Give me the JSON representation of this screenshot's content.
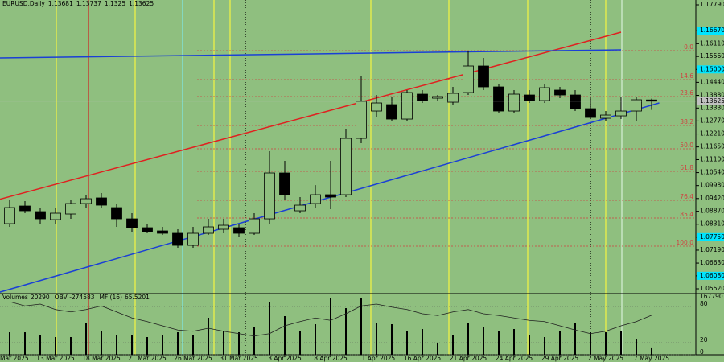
{
  "chart_data": [
    {
      "type": "candlestick",
      "symbol": "EURUSD,Daily",
      "background": "#8fbf7f",
      "categories": [
        "Mar 2025",
        null,
        null,
        "13 Mar 2025",
        null,
        null,
        "18 Mar 2025",
        null,
        null,
        "21 Mar 2025",
        null,
        null,
        "26 Mar 2025",
        null,
        null,
        "31 Mar 2025",
        null,
        null,
        "3 Apr 2025",
        null,
        null,
        "8 Apr 2025",
        null,
        null,
        "11 Apr 2025",
        null,
        null,
        "16 Apr 2025",
        null,
        null,
        "21 Apr 2025",
        null,
        null,
        "24 Apr 2025",
        null,
        null,
        "29 Apr 2025",
        null,
        null,
        "2 May 2025",
        null,
        null,
        "7 May 2025"
      ],
      "open": [
        1.08335,
        1.09099,
        1.08856,
        1.08508,
        1.08752,
        1.09204,
        1.09448,
        1.0903,
        1.08543,
        1.08161,
        1.08022,
        1.07918,
        1.07396,
        1.07918,
        1.08092,
        1.08161,
        1.07918,
        1.08543,
        1.10525,
        1.08891,
        1.09204,
        1.09586,
        1.09586,
        1.12019,
        1.13201,
        1.13479,
        1.12853,
        1.13931,
        1.13757,
        1.13583,
        1.14001,
        1.15148,
        1.14244,
        1.13201,
        1.13896,
        1.13653,
        1.14105,
        1.13896,
        1.13305,
        1.12888,
        1.12992,
        1.13201,
        1.13681
      ],
      "high": [
        1.09378,
        1.09309,
        1.0903,
        1.0903,
        1.09378,
        1.09586,
        1.09656,
        1.09204,
        1.08787,
        1.08335,
        1.08196,
        1.08092,
        1.08196,
        1.08543,
        1.08543,
        1.08335,
        1.08787,
        1.11463,
        1.11046,
        1.09482,
        1.09999,
        1.11046,
        1.12436,
        1.14696,
        1.13896,
        1.13827,
        1.14105,
        1.14105,
        1.13896,
        1.14244,
        1.15808,
        1.15495,
        1.14348,
        1.14105,
        1.14105,
        1.14348,
        1.14244,
        1.14105,
        1.13827,
        1.13201,
        1.13827,
        1.13827,
        1.13737
      ],
      "low": [
        1.08196,
        1.08787,
        1.08335,
        1.08335,
        1.08543,
        1.0903,
        1.0903,
        1.08196,
        1.07987,
        1.07918,
        1.07848,
        1.07292,
        1.07292,
        1.07848,
        1.07918,
        1.07744,
        1.07848,
        1.08335,
        1.09378,
        1.08787,
        1.0903,
        1.0896,
        1.09482,
        1.11811,
        1.12958,
        1.12784,
        1.12784,
        1.13549,
        1.13618,
        1.13479,
        1.13896,
        1.14105,
        1.13131,
        1.13131,
        1.13549,
        1.13549,
        1.13757,
        1.13201,
        1.12853,
        1.12784,
        1.12853,
        1.12784,
        1.1325
      ],
      "close": [
        1.0903,
        1.08891,
        1.08543,
        1.08787,
        1.09204,
        1.09412,
        1.09134,
        1.08543,
        1.08161,
        1.07987,
        1.07918,
        1.07396,
        1.07918,
        1.08196,
        1.08265,
        1.07918,
        1.08543,
        1.10525,
        1.09586,
        1.09134,
        1.09586,
        1.09482,
        1.12019,
        1.13618,
        1.13549,
        1.12853,
        1.14001,
        1.13653,
        1.13827,
        1.13966,
        1.15148,
        1.14244,
        1.13201,
        1.13931,
        1.13653,
        1.14209,
        1.13896,
        1.13305,
        1.12923,
        1.13027,
        1.13201,
        1.13688,
        1.13625
      ],
      "up_color": "#8fbf7f",
      "down_color": "#000000",
      "ylim": [
        1.0552,
        1.1779
      ],
      "yticks": [
        {
          "value": 1.1779,
          "label": "1.17790"
        },
        {
          "value": 1.1667,
          "label": "1.16670",
          "highlight": true
        },
        {
          "value": 1.1611,
          "label": "1.16110"
        },
        {
          "value": 1.1556,
          "label": "1.15560"
        },
        {
          "value": 1.15,
          "label": "1.15000",
          "highlight": true
        },
        {
          "value": 1.1444,
          "label": "1.14440"
        },
        {
          "value": 1.1388,
          "label": "1.13880"
        },
        {
          "value": 1.1333,
          "label": "1.13330"
        },
        {
          "value": 1.1277,
          "label": "1.12770"
        },
        {
          "value": 1.1221,
          "label": "1.12210"
        },
        {
          "value": 1.1165,
          "label": "1.11650"
        },
        {
          "value": 1.111,
          "label": "1.11100"
        },
        {
          "value": 1.1054,
          "label": "1.10540"
        },
        {
          "value": 1.0998,
          "label": "1.09980"
        },
        {
          "value": 1.0942,
          "label": "1.09420"
        },
        {
          "value": 1.0887,
          "label": "1.08870"
        },
        {
          "value": 1.0831,
          "label": "1.08310"
        },
        {
          "value": 1.0775,
          "label": "1.07750",
          "highlight": true
        },
        {
          "value": 1.0719,
          "label": "1.07190"
        },
        {
          "value": 1.0663,
          "label": "1.06630"
        },
        {
          "value": 1.0608,
          "label": "1.06080",
          "highlight": true
        },
        {
          "value": 1.0552,
          "label": "1.05520"
        }
      ],
      "highlight_color": "#00e5ff",
      "current_price_color": "#c0c0c0",
      "fib_color": "#d04040",
      "fib_levels": [
        {
          "label": "0.0",
          "value": 1.15808
        },
        {
          "label": "14.6",
          "value": 1.14557
        },
        {
          "label": "23.6",
          "value": 1.13827
        },
        {
          "label": "38.2",
          "value": 1.12575
        },
        {
          "label": "50.0",
          "value": 1.11568
        },
        {
          "label": "61.8",
          "value": 1.10594
        },
        {
          "label": "76.4",
          "value": 1.09343
        },
        {
          "label": "85.4",
          "value": 1.08578
        },
        {
          "label": "100.0",
          "value": 1.07362
        }
      ],
      "trendlines": [
        {
          "color": "#1a3fd6",
          "x": [
            -1,
            42.5
          ],
          "y": [
            1.0531,
            1.13549
          ]
        },
        {
          "color": "#e02020",
          "x": [
            -0.7,
            40
          ],
          "y": [
            1.09378,
            1.16608
          ]
        },
        {
          "color": "#1a3fd6",
          "x": [
            -0.7,
            40
          ],
          "y": [
            1.15495,
            1.15843
          ]
        }
      ]
    },
    {
      "type": "indicator",
      "series": [
        {
          "name": "Volumes",
          "color": "#000000",
          "values": [
            62600,
            62600,
            55900,
            49200,
            49200,
            89500,
            67100,
            55900,
            55900,
            49200,
            55900,
            62600,
            55900,
            102900,
            67100,
            62600,
            78300,
            145400,
            107400,
            67100,
            85000,
            156600,
            129700,
            158800,
            89500,
            85000,
            67100,
            71600,
            33600,
            55900,
            89500,
            78300,
            67100,
            71600,
            55900,
            49200,
            67100,
            89500,
            62600,
            62600,
            67100,
            44700,
            20290
          ]
        },
        {
          "name": "MFI(16)",
          "color": "#202020",
          "axis": "y2",
          "values": [
            88,
            81,
            84,
            75,
            71,
            75,
            81,
            71,
            61,
            55,
            48,
            41,
            39,
            44,
            39,
            35,
            31,
            35,
            48,
            55,
            61,
            57,
            68,
            81,
            84,
            79,
            75,
            68,
            65,
            71,
            75,
            68,
            65,
            61,
            57,
            55,
            48,
            41,
            35,
            39,
            48,
            55,
            65.5201
          ]
        }
      ],
      "obv": {
        "name": "OBV",
        "value": -274583
      },
      "ylim": [
        0,
        167790
      ],
      "yticks": [
        167790
      ],
      "y2lim": [
        0,
        100
      ],
      "y2ticks": [
        80,
        20,
        0
      ]
    }
  ]
}
